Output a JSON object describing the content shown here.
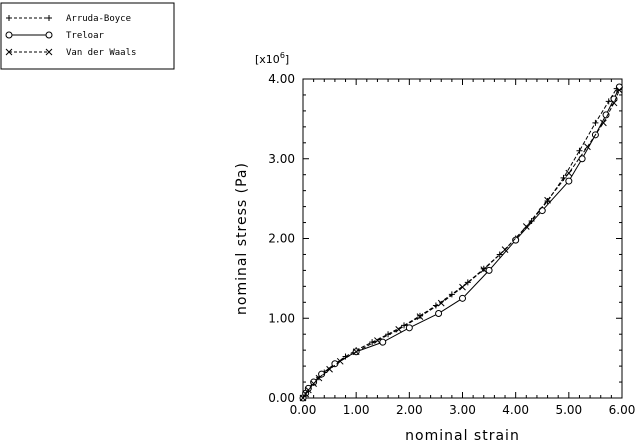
{
  "chart_data": {
    "type": "line",
    "title": "",
    "xlabel": "nominal strain",
    "ylabel": "nominal stress (Pa)",
    "y_multiplier_label": "[x10",
    "y_multiplier_exp": "6",
    "y_multiplier_close": "]",
    "xlim": [
      0,
      6
    ],
    "ylim": [
      0,
      4
    ],
    "xticks": [
      0,
      1,
      2,
      3,
      4,
      5,
      6
    ],
    "xtick_labels": [
      "0.00",
      "1.00",
      "2.00",
      "3.00",
      "4.00",
      "5.00",
      "6.00"
    ],
    "yticks": [
      0,
      1,
      2,
      3,
      4
    ],
    "ytick_labels": [
      "0.00",
      "1.00",
      "2.00",
      "3.00",
      "4.00"
    ],
    "grid": false,
    "legend_position": "top-left, outside plot",
    "series": [
      {
        "name": "Arruda-Boyce",
        "marker": "plus",
        "line": "dashed",
        "x": [
          0.0,
          0.05,
          0.1,
          0.2,
          0.3,
          0.4,
          0.6,
          0.8,
          1.0,
          1.3,
          1.6,
          1.9,
          2.2,
          2.5,
          2.8,
          3.1,
          3.4,
          3.7,
          4.0,
          4.3,
          4.6,
          4.9,
          5.2,
          5.5,
          5.75,
          5.9
        ],
        "y": [
          0.0,
          0.06,
          0.11,
          0.19,
          0.26,
          0.32,
          0.43,
          0.52,
          0.6,
          0.7,
          0.8,
          0.91,
          1.03,
          1.16,
          1.3,
          1.45,
          1.62,
          1.8,
          2.0,
          2.22,
          2.47,
          2.76,
          3.1,
          3.45,
          3.72,
          3.88
        ]
      },
      {
        "name": "Treloar",
        "marker": "circle",
        "line": "solid",
        "x": [
          0.0,
          0.05,
          0.1,
          0.2,
          0.35,
          0.6,
          1.0,
          1.5,
          2.0,
          2.55,
          3.0,
          3.5,
          4.0,
          4.5,
          5.0,
          5.25,
          5.5,
          5.7,
          5.85,
          5.95
        ],
        "y": [
          0.0,
          0.06,
          0.12,
          0.2,
          0.3,
          0.43,
          0.58,
          0.7,
          0.88,
          1.06,
          1.25,
          1.6,
          1.98,
          2.35,
          2.72,
          3.0,
          3.3,
          3.55,
          3.75,
          3.9
        ]
      },
      {
        "name": "Van der Waals",
        "marker": "x",
        "line": "dashed",
        "x": [
          0.0,
          0.05,
          0.1,
          0.2,
          0.3,
          0.5,
          0.7,
          1.0,
          1.4,
          1.8,
          2.2,
          2.6,
          3.0,
          3.4,
          3.8,
          4.2,
          4.6,
          5.0,
          5.35,
          5.65,
          5.85,
          5.95
        ],
        "y": [
          0.0,
          0.05,
          0.1,
          0.18,
          0.25,
          0.36,
          0.46,
          0.58,
          0.72,
          0.86,
          1.02,
          1.19,
          1.39,
          1.61,
          1.86,
          2.15,
          2.48,
          2.82,
          3.15,
          3.45,
          3.7,
          3.86
        ]
      }
    ]
  }
}
